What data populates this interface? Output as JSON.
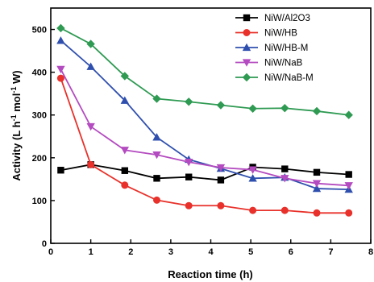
{
  "chart_data": {
    "type": "line",
    "title": "",
    "xlabel": "Reaction time (h)",
    "ylabel": "Activity (L h-1 mol-1 W)",
    "ylabel_parts": [
      "Activity (L h",
      "-1",
      " mol",
      "-1",
      " W)"
    ],
    "xlim": [
      0,
      8
    ],
    "ylim": [
      0,
      550
    ],
    "xticks": [
      0,
      1,
      2,
      3,
      4,
      5,
      6,
      7,
      8
    ],
    "yticks": [
      0,
      100,
      200,
      300,
      400,
      500
    ],
    "x": [
      0.25,
      1.0,
      1.85,
      2.65,
      3.45,
      4.25,
      5.05,
      5.85,
      6.65,
      7.45
    ],
    "legend_position": "top-right",
    "grid": false,
    "series": [
      {
        "name": "NiW/Al2O3",
        "color": "#000000",
        "marker": "square",
        "values": [
          171,
          184,
          170,
          152,
          155,
          148,
          178,
          174,
          166,
          161
        ]
      },
      {
        "name": "NiW/HB",
        "color": "#e8312a",
        "marker": "circle",
        "values": [
          386,
          184,
          136,
          101,
          88,
          88,
          77,
          77,
          71,
          71
        ]
      },
      {
        "name": "NiW/HB-M",
        "color": "#2f4fae",
        "marker": "triangle-up",
        "values": [
          474,
          413,
          334,
          248,
          196,
          175,
          152,
          154,
          128,
          126
        ]
      },
      {
        "name": "NiW/NaB",
        "color": "#b44bc0",
        "marker": "triangle-down",
        "values": [
          407,
          273,
          218,
          207,
          190,
          177,
          172,
          152,
          140,
          135
        ]
      },
      {
        "name": "NiW/NaB-M",
        "color": "#2e9a52",
        "marker": "diamond",
        "values": [
          503,
          466,
          391,
          338,
          331,
          323,
          315,
          316,
          309,
          300
        ]
      }
    ]
  }
}
